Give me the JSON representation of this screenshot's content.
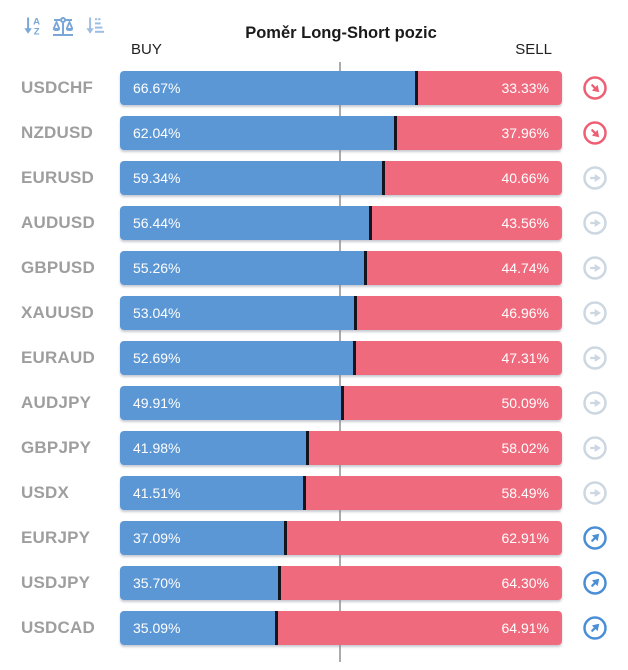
{
  "header": {
    "title": "Poměr Long-Short pozic",
    "buy_label": "BUY",
    "sell_label": "SELL",
    "toolbar_icons": [
      "sort-alphabetical-icon",
      "balance-scale-icon",
      "sort-amount-icon"
    ]
  },
  "rows": [
    {
      "symbol": "USDCHF",
      "buy": 66.67,
      "sell": 33.33,
      "buy_text": "66.67%",
      "sell_text": "33.33%",
      "trend": "down"
    },
    {
      "symbol": "NZDUSD",
      "buy": 62.04,
      "sell": 37.96,
      "buy_text": "62.04%",
      "sell_text": "37.96%",
      "trend": "down"
    },
    {
      "symbol": "EURUSD",
      "buy": 59.34,
      "sell": 40.66,
      "buy_text": "59.34%",
      "sell_text": "40.66%",
      "trend": "flat"
    },
    {
      "symbol": "AUDUSD",
      "buy": 56.44,
      "sell": 43.56,
      "buy_text": "56.44%",
      "sell_text": "43.56%",
      "trend": "flat"
    },
    {
      "symbol": "GBPUSD",
      "buy": 55.26,
      "sell": 44.74,
      "buy_text": "55.26%",
      "sell_text": "44.74%",
      "trend": "flat"
    },
    {
      "symbol": "XAUUSD",
      "buy": 53.04,
      "sell": 46.96,
      "buy_text": "53.04%",
      "sell_text": "46.96%",
      "trend": "flat"
    },
    {
      "symbol": "EURAUD",
      "buy": 52.69,
      "sell": 47.31,
      "buy_text": "52.69%",
      "sell_text": "47.31%",
      "trend": "flat"
    },
    {
      "symbol": "AUDJPY",
      "buy": 49.91,
      "sell": 50.09,
      "buy_text": "49.91%",
      "sell_text": "50.09%",
      "trend": "flat"
    },
    {
      "symbol": "GBPJPY",
      "buy": 41.98,
      "sell": 58.02,
      "buy_text": "41.98%",
      "sell_text": "58.02%",
      "trend": "flat"
    },
    {
      "symbol": "USDX",
      "buy": 41.51,
      "sell": 58.49,
      "buy_text": "41.51%",
      "sell_text": "58.49%",
      "trend": "flat"
    },
    {
      "symbol": "EURJPY",
      "buy": 37.09,
      "sell": 62.91,
      "buy_text": "37.09%",
      "sell_text": "62.91%",
      "trend": "up"
    },
    {
      "symbol": "USDJPY",
      "buy": 35.7,
      "sell": 64.3,
      "buy_text": "35.70%",
      "sell_text": "64.30%",
      "trend": "up"
    },
    {
      "symbol": "USDCAD",
      "buy": 35.09,
      "sell": 64.91,
      "buy_text": "35.09%",
      "sell_text": "64.91%",
      "trend": "up"
    }
  ],
  "chart_data": {
    "type": "bar",
    "orientation": "horizontal",
    "stacked": true,
    "title": "Poměr Long-Short pozic",
    "categories": [
      "USDCHF",
      "NZDUSD",
      "EURUSD",
      "AUDUSD",
      "GBPUSD",
      "XAUUSD",
      "EURAUD",
      "AUDJPY",
      "GBPJPY",
      "USDX",
      "EURJPY",
      "USDJPY",
      "USDCAD"
    ],
    "series": [
      {
        "name": "BUY",
        "values": [
          66.67,
          62.04,
          59.34,
          56.44,
          55.26,
          53.04,
          52.69,
          49.91,
          41.98,
          41.51,
          37.09,
          35.7,
          35.09
        ]
      },
      {
        "name": "SELL",
        "values": [
          33.33,
          37.96,
          40.66,
          43.56,
          44.74,
          46.96,
          47.31,
          50.09,
          58.02,
          58.49,
          62.91,
          64.3,
          64.91
        ]
      }
    ],
    "xlim": [
      0,
      100
    ],
    "midline": 50,
    "legend_position": "top",
    "trend_markers": [
      "down",
      "down",
      "flat",
      "flat",
      "flat",
      "flat",
      "flat",
      "flat",
      "flat",
      "flat",
      "up",
      "up",
      "up"
    ]
  },
  "colors": {
    "buy_bar": "#5b97d5",
    "sell_bar": "#ef6a7d",
    "bar_divider": "#15151d",
    "symbol_label": "#9e9e9e",
    "center_line": "#ababab",
    "trend_down": "#ee5f74",
    "trend_flat": "#ccd7e2",
    "trend_up": "#4a8ed6",
    "toolbar_icon": "#7aa6d8",
    "title": "#1a1a1a"
  }
}
